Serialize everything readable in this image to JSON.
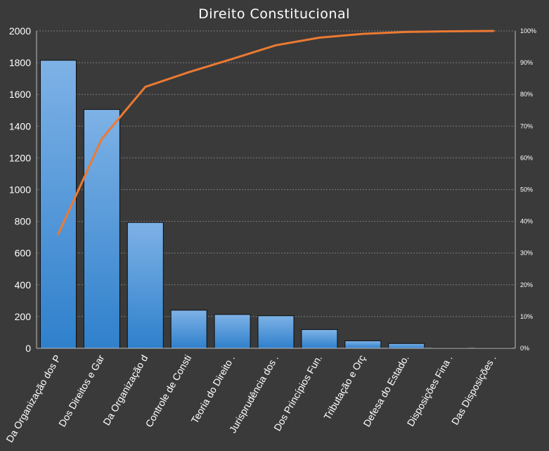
{
  "chart_data": {
    "type": "bar",
    "title": "Direito Constitucional",
    "categories": [
      "Da Organização dos P",
      "Dos Direitos e Gar",
      "Da Organização d",
      "Controle de Consti",
      "Teoria do Direito .",
      "Jurisprudência dos .",
      "Dos Princípios Fun.",
      "Tributação e Orç",
      "Defesa do Estado.",
      "Disposições Fina .",
      "Das Disposições ."
    ],
    "series": [
      {
        "values": [
          1815,
          1505,
          793,
          240,
          213,
          205,
          118,
          47,
          30,
          3,
          3
        ]
      },
      {
        "axis": "secondary",
        "values": [
          0.36,
          0.66,
          0.824,
          0.87,
          0.912,
          0.955,
          0.979,
          0.991,
          0.997,
          0.999,
          1.0
        ]
      }
    ],
    "ylim": [
      0,
      2000
    ],
    "yticks": [
      "0",
      "200",
      "400",
      "600",
      "800",
      "1000",
      "1200",
      "1400",
      "1600",
      "1800",
      "2000"
    ],
    "y2lim": [
      0,
      1
    ],
    "y2ticks": [
      "0%",
      "10%",
      "20%",
      "30%",
      "40%",
      "50%",
      "60%",
      "70%",
      "80%",
      "90%",
      "100%"
    ],
    "grid": true,
    "colors": {
      "background": "#3a3a3a",
      "bar_top": "#7eb2e6",
      "bar_bottom": "#2f80cc",
      "line": "#ec7a32"
    }
  }
}
